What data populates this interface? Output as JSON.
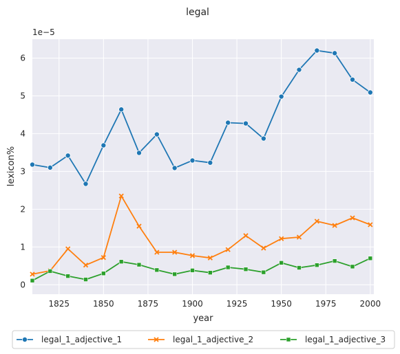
{
  "chart_data": {
    "type": "line",
    "title": "legal",
    "xlabel": "year",
    "ylabel": "lexicon%",
    "y_scale_label": "1e−5",
    "xlim": [
      1810,
      2002
    ],
    "ylim": [
      -0.25,
      6.5
    ],
    "x_ticks": [
      1825,
      1850,
      1875,
      1900,
      1925,
      1950,
      1975,
      2000
    ],
    "y_ticks": [
      0,
      1,
      2,
      3,
      4,
      5,
      6
    ],
    "grid": true,
    "legend_position": "bottom",
    "x": [
      1810,
      1820,
      1830,
      1840,
      1850,
      1860,
      1870,
      1880,
      1890,
      1900,
      1910,
      1920,
      1930,
      1940,
      1950,
      1960,
      1970,
      1980,
      1990,
      2000
    ],
    "series": [
      {
        "name": "legal_1_adjective_1",
        "color": "#1f77b4",
        "marker": "circle",
        "values": [
          3.18,
          3.1,
          3.42,
          2.67,
          3.69,
          4.64,
          3.49,
          3.98,
          3.09,
          3.29,
          3.23,
          4.29,
          4.27,
          3.87,
          4.98,
          5.69,
          6.2,
          6.13,
          5.43,
          5.09
        ]
      },
      {
        "name": "legal_1_adjective_2",
        "color": "#ff7f0e",
        "marker": "x",
        "values": [
          0.28,
          0.37,
          0.95,
          0.52,
          0.72,
          2.35,
          1.55,
          0.86,
          0.86,
          0.77,
          0.71,
          0.93,
          1.3,
          0.97,
          1.22,
          1.26,
          1.68,
          1.57,
          1.77,
          1.59
        ]
      },
      {
        "name": "legal_1_adjective_3",
        "color": "#2ca02c",
        "marker": "square",
        "values": [
          0.11,
          0.36,
          0.23,
          0.14,
          0.3,
          0.61,
          0.53,
          0.39,
          0.28,
          0.38,
          0.32,
          0.46,
          0.41,
          0.33,
          0.58,
          0.45,
          0.52,
          0.63,
          0.48,
          0.7
        ]
      }
    ]
  }
}
